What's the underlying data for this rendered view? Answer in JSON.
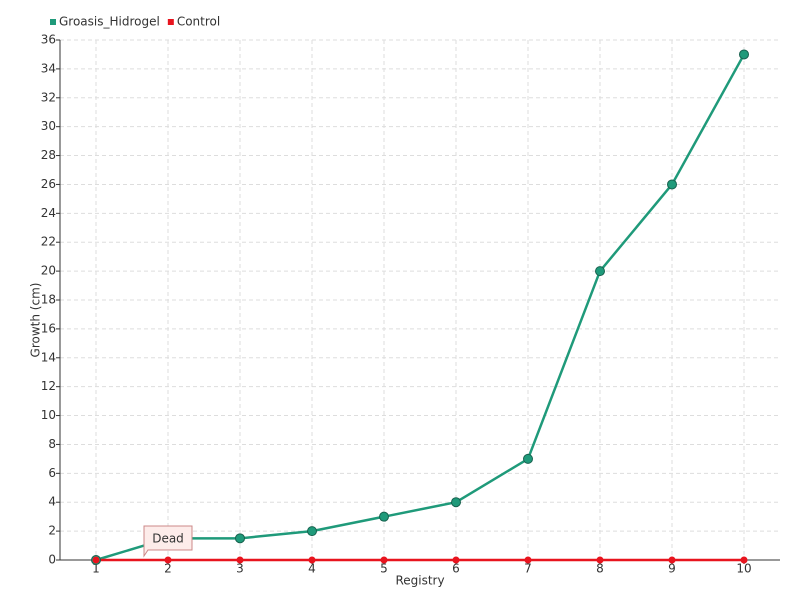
{
  "chart_data": {
    "type": "line",
    "x_label": "Registry",
    "y_label": "Growth (cm)",
    "categories": [
      "1",
      "2",
      "3",
      "4",
      "5",
      "6",
      "7",
      "8",
      "9",
      "10"
    ],
    "series": [
      {
        "name": "Groasis_Hidrogel",
        "color": "#1f9a7a",
        "values": [
          0,
          1.5,
          1.5,
          2,
          3,
          4,
          7,
          20,
          26,
          35
        ]
      },
      {
        "name": "Control",
        "color": "#e8141e",
        "values": [
          0,
          0,
          0,
          0,
          0,
          0,
          0,
          0,
          0,
          0
        ]
      }
    ],
    "ylim": [
      0,
      36
    ],
    "yticks": [
      0,
      2,
      4,
      6,
      8,
      10,
      12,
      14,
      16,
      18,
      20,
      22,
      24,
      26,
      28,
      30,
      32,
      34,
      36
    ],
    "grid": true,
    "legend": "top-left",
    "annotations": [
      {
        "text": "Dead",
        "category": "2",
        "series": "Control"
      }
    ]
  }
}
